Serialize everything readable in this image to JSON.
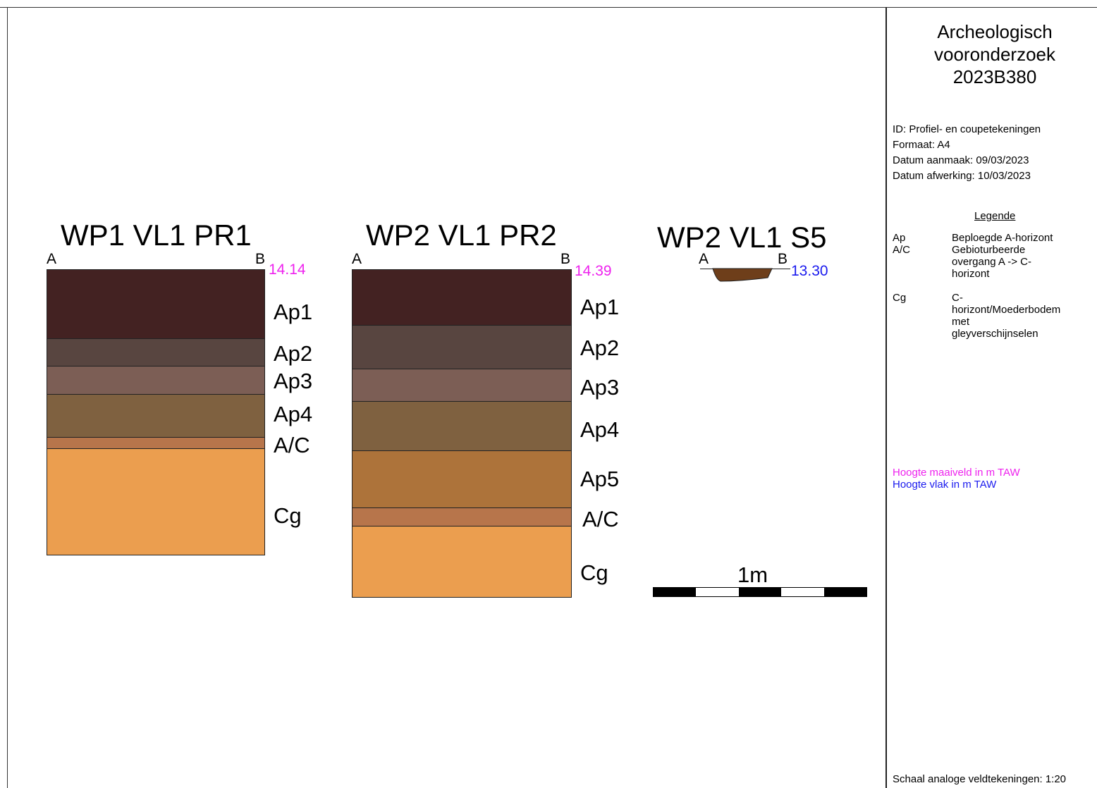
{
  "colors": {
    "magenta": "#ee22ee",
    "blue": "#1a1aee",
    "ap1": "#432222",
    "ap2": "#584540",
    "ap3": "#7c5e55",
    "ap4": "#7f6140",
    "ap5": "#ad733a",
    "ac": "#b7754b",
    "cg": "#eb9e4f",
    "s5_fill": "#6e3e1a"
  },
  "profiles": {
    "p1": {
      "title": "WP1 VL1 PR1",
      "point_a": "A",
      "point_b": "B",
      "elevation": "14.14",
      "layers": [
        {
          "label": "Ap1",
          "color": "#432222"
        },
        {
          "label": "Ap2",
          "color": "#584540"
        },
        {
          "label": "Ap3",
          "color": "#7c5e55"
        },
        {
          "label": "Ap4",
          "color": "#7f6140"
        },
        {
          "label": "A/C",
          "color": "#b7754b"
        },
        {
          "label": "Cg",
          "color": "#eb9e4f"
        }
      ]
    },
    "p2": {
      "title": "WP2 VL1 PR2",
      "point_a": "A",
      "point_b": "B",
      "elevation": "14.39",
      "layers": [
        {
          "label": "Ap1",
          "color": "#432222"
        },
        {
          "label": "Ap2",
          "color": "#584540"
        },
        {
          "label": "Ap3",
          "color": "#7c5e55"
        },
        {
          "label": "Ap4",
          "color": "#7f6140"
        },
        {
          "label": "Ap5",
          "color": "#ad733a"
        },
        {
          "label": "A/C",
          "color": "#b7754b"
        },
        {
          "label": "Cg",
          "color": "#eb9e4f"
        }
      ]
    },
    "s5": {
      "title": "WP2 VL1 S5",
      "point_a": "A",
      "point_b": "B",
      "elevation": "13.30"
    }
  },
  "scale": {
    "label": "1m",
    "segments": [
      "black",
      "white",
      "black",
      "white",
      "black"
    ]
  },
  "sidebar": {
    "title_line1": "Archeologisch",
    "title_line2": "vooronderzoek",
    "title_line3": "2023B380",
    "meta_id": "ID: Profiel- en coupetekeningen",
    "meta_format": "Formaat: A4",
    "meta_created": "Datum aanmaak: 09/03/2023",
    "meta_finished": "Datum afwerking: 10/03/2023",
    "legend_title": "Legende",
    "legend": [
      {
        "code": "Ap",
        "desc": "Beploegde A-horizont"
      },
      {
        "code": "A/C",
        "desc": "Gebioturbeerde overgang A -> C-horizont"
      },
      {
        "code": "Cg",
        "desc": "C-horizont/Moederbodem met gleyverschijnselen"
      }
    ],
    "height_surface": "Hoogte maaiveld in m TAW",
    "height_plane": "Hoogte vlak in m TAW",
    "scale_note": "Schaal analoge veldtekeningen: 1:20"
  }
}
